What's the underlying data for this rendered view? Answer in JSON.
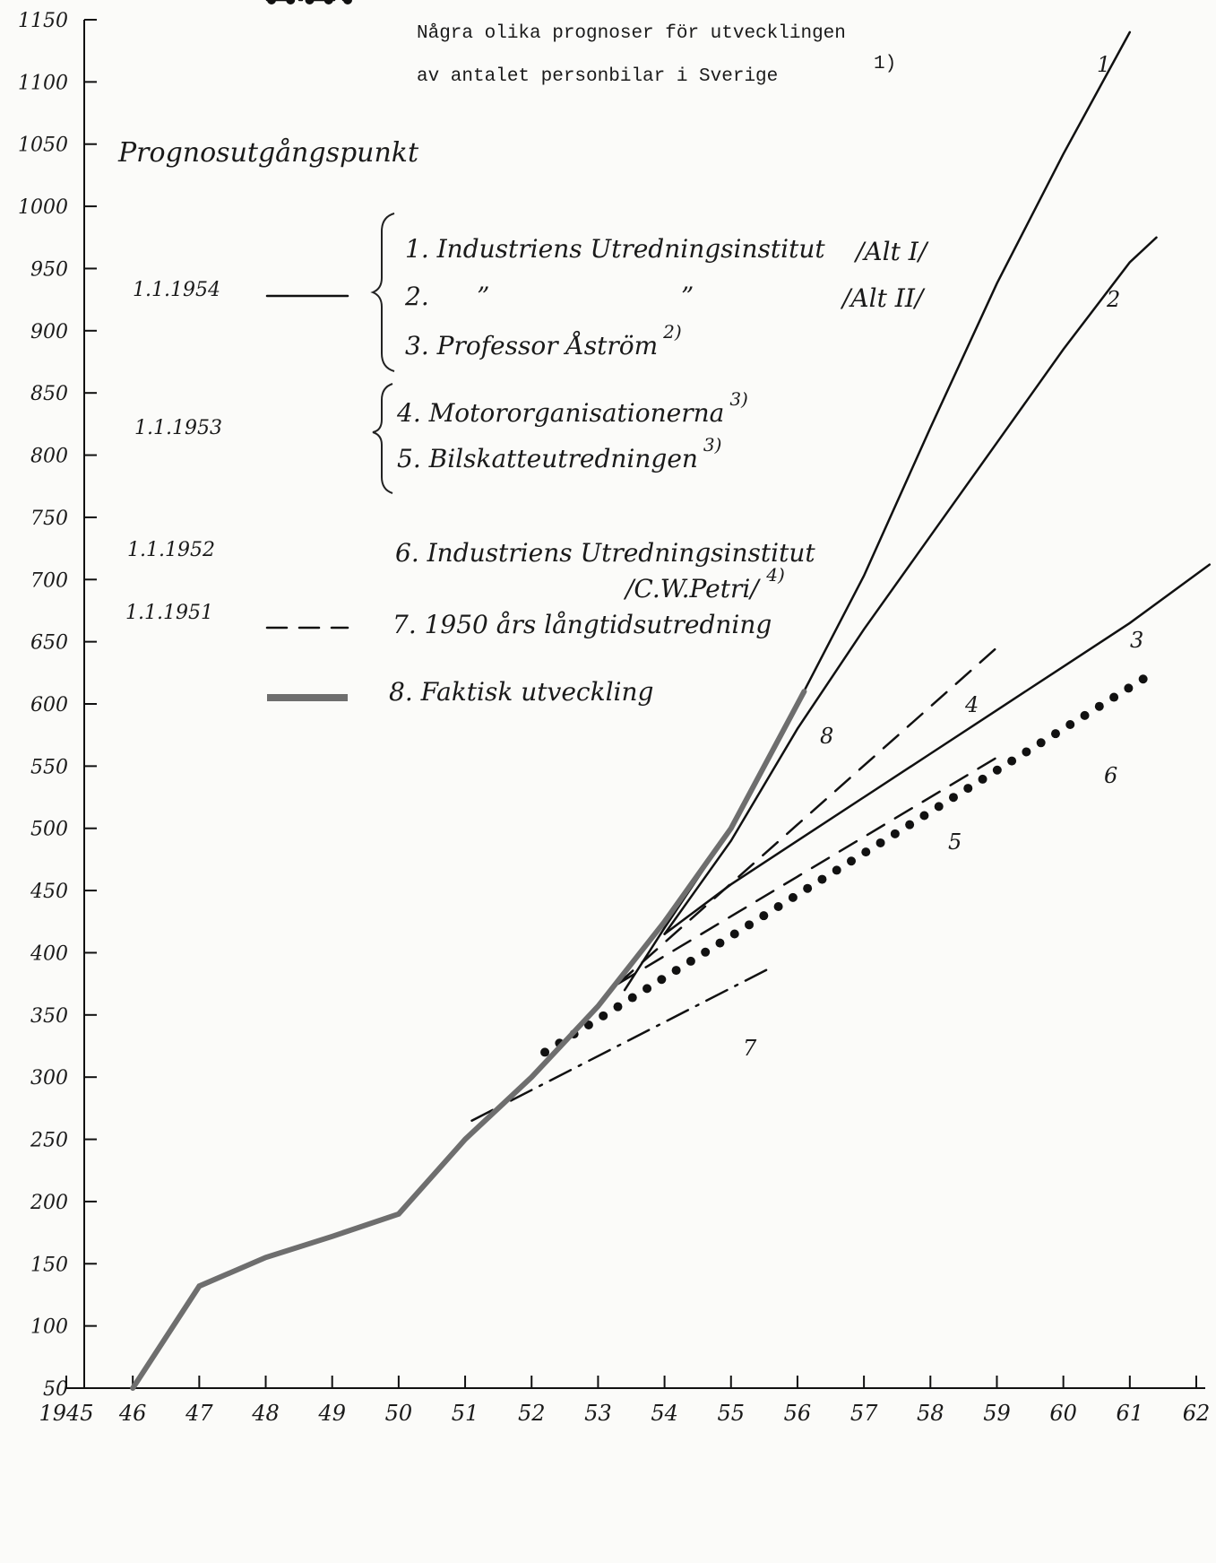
{
  "chart_data": {
    "type": "line",
    "title": [
      "Några olika prognoser för utvecklingen",
      "av antalet personbilar i Sverige"
    ],
    "title_note": "1)",
    "legend_title": "Prognosutgångspunkt",
    "starts": [
      "1.1.1954",
      "1.1.1953",
      "1.1.1952",
      "1.1.1951"
    ],
    "xlim": [
      1945,
      1962
    ],
    "xticks": [
      1945,
      {
        "value": 1946,
        "label": "46"
      },
      {
        "value": 1947,
        "label": "47"
      },
      {
        "value": 1948,
        "label": "48"
      },
      {
        "value": 1949,
        "label": "49"
      },
      {
        "value": 1950,
        "label": "50"
      },
      {
        "value": 1951,
        "label": "51"
      },
      {
        "value": 1952,
        "label": "52"
      },
      {
        "value": 1953,
        "label": "53"
      },
      {
        "value": 1954,
        "label": "54"
      },
      {
        "value": 1955,
        "label": "55"
      },
      {
        "value": 1956,
        "label": "56"
      },
      {
        "value": 1957,
        "label": "57"
      },
      {
        "value": 1958,
        "label": "58"
      },
      {
        "value": 1959,
        "label": "59"
      },
      {
        "value": 1960,
        "label": "60"
      },
      {
        "value": 1961,
        "label": "61"
      },
      {
        "value": 1962,
        "label": "62"
      }
    ],
    "ylim": [
      50,
      1150
    ],
    "yticks": [
      50,
      100,
      150,
      200,
      250,
      300,
      350,
      400,
      450,
      500,
      550,
      600,
      650,
      700,
      750,
      800,
      850,
      900,
      950,
      1000,
      1050,
      1100,
      1150
    ],
    "grid": false,
    "series": [
      {
        "name": "1. Industriens Utredningsinstitut",
        "alt": "/Alt I/",
        "end_label": "1",
        "color": "#111111",
        "dash": "solid",
        "x": [
          1953.4,
          1954,
          1955,
          1956,
          1957,
          1958,
          1959,
          1960,
          1961
        ],
        "values": [
          370,
          420,
          500,
          600,
          703,
          822,
          938,
          1042,
          1140
        ]
      },
      {
        "name": "2.      ”                        ”",
        "alt": "/Alt II/",
        "end_label": "2",
        "color": "#111111",
        "dash": "solid",
        "x": [
          1954,
          1955,
          1956,
          1957,
          1958,
          1959,
          1960,
          1961,
          1961.4
        ],
        "values": [
          415,
          490,
          580,
          660,
          735,
          810,
          885,
          955,
          975
        ]
      },
      {
        "name": "3. Professor Åström",
        "note": "2)",
        "end_label": "3",
        "color": "#111111",
        "dash": "solid",
        "x": [
          1954,
          1955,
          1956,
          1957,
          1958,
          1959,
          1960,
          1961,
          1962.2
        ],
        "values": [
          415,
          455,
          490,
          525,
          560,
          595,
          630,
          665,
          712
        ]
      },
      {
        "name": "4. Motororganisationerna",
        "note": "3)",
        "end_label": "4",
        "color": "#111111",
        "dash": "dashed",
        "x": [
          1953.3,
          1959.1
        ],
        "values": [
          375,
          650
        ]
      },
      {
        "name": "5. Bilskatteutredningen",
        "note": "3)",
        "end_label": "5",
        "color": "#111111",
        "dash": "dashed",
        "x": [
          1953.3,
          1959
        ],
        "values": [
          375,
          557
        ]
      },
      {
        "name": "6. Industriens Utredningsinstitut",
        "alt": "/C.W.Petri/",
        "note": "4)",
        "end_label": "6",
        "color": "#111111",
        "dash": "dotted",
        "x": [
          1952.2,
          1961.2
        ],
        "values": [
          320,
          620
        ]
      },
      {
        "name": "7. 1950 års långtidsutredning",
        "end_label": "7",
        "color": "#111111",
        "dash": "dashdot",
        "x": [
          1951.1,
          1955.6
        ],
        "values": [
          265,
          388
        ]
      },
      {
        "name": "8. Faktisk utveckling",
        "end_label": "8",
        "color": "#6e6e6e",
        "dash": "thick",
        "x": [
          1946,
          1947,
          1948,
          1949,
          1950,
          1951,
          1952,
          1953,
          1954,
          1955,
          1956.1
        ],
        "values": [
          50,
          132,
          155,
          172,
          190,
          250,
          300,
          357,
          425,
          500,
          610
        ]
      }
    ]
  }
}
